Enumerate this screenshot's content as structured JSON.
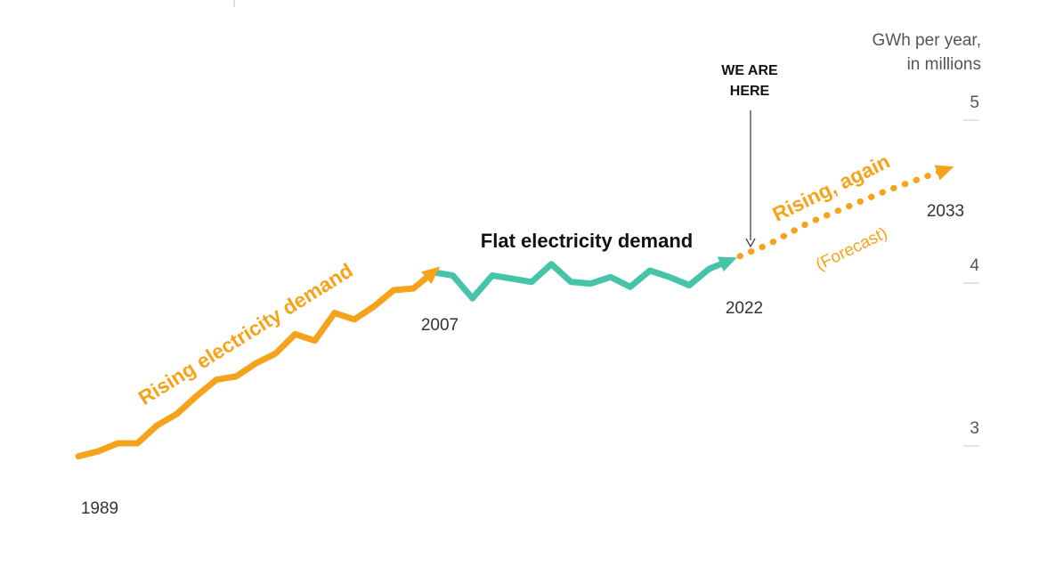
{
  "chart_data": {
    "type": "line",
    "title": "",
    "xlabel": "",
    "ylabel": "GWh per year, in millions",
    "ylabel_lines": [
      "GWh per year,",
      "in millions"
    ],
    "xlim": [
      1989,
      2033
    ],
    "ylim": [
      2.6,
      5.2
    ],
    "y_ticks": [
      3,
      4,
      5
    ],
    "y_tick_labels": [
      "3",
      "4",
      "5"
    ],
    "grid": false,
    "colors": {
      "rising": "#f5a31a",
      "flat": "#45c4aa",
      "text": "#222222",
      "axis": "#555555",
      "tick": "#c8c8c8"
    },
    "series": [
      {
        "name": "Rising electricity demand",
        "style": "solid",
        "color": "#f5a31a",
        "x": [
          1989,
          1990,
          1991,
          1992,
          1993,
          1994,
          1995,
          1996,
          1997,
          1998,
          1999,
          2000,
          2001,
          2002,
          2003,
          2004,
          2005,
          2006,
          2007
        ],
        "y": [
          2.86,
          2.89,
          2.94,
          2.94,
          3.05,
          3.12,
          3.23,
          3.33,
          3.35,
          3.43,
          3.49,
          3.61,
          3.57,
          3.74,
          3.7,
          3.78,
          3.88,
          3.89,
          3.99
        ]
      },
      {
        "name": "Flat electricity demand",
        "style": "solid",
        "color": "#45c4aa",
        "x": [
          2007,
          2008,
          2009,
          2010,
          2011,
          2012,
          2013,
          2014,
          2015,
          2016,
          2017,
          2018,
          2019,
          2020,
          2021,
          2022
        ],
        "y": [
          3.99,
          3.97,
          3.83,
          3.97,
          3.95,
          3.93,
          4.04,
          3.93,
          3.92,
          3.96,
          3.9,
          4.0,
          3.96,
          3.91,
          4.01,
          4.06
        ]
      },
      {
        "name": "Rising, again (Forecast)",
        "style": "dotted",
        "color": "#f5a31a",
        "x": [
          2022,
          2024,
          2026,
          2028,
          2030,
          2033
        ],
        "y": [
          4.06,
          4.16,
          4.29,
          4.39,
          4.49,
          4.62
        ]
      }
    ],
    "annotations": {
      "rising": "Rising electricity demand",
      "flat": "Flat electricity demand",
      "rising_again": "Rising, again",
      "forecast": "(Forecast)",
      "marker": [
        "WE ARE",
        "HERE"
      ],
      "marker_year": 2022
    },
    "year_labels": [
      "1989",
      "2007",
      "2022",
      "2033"
    ]
  }
}
